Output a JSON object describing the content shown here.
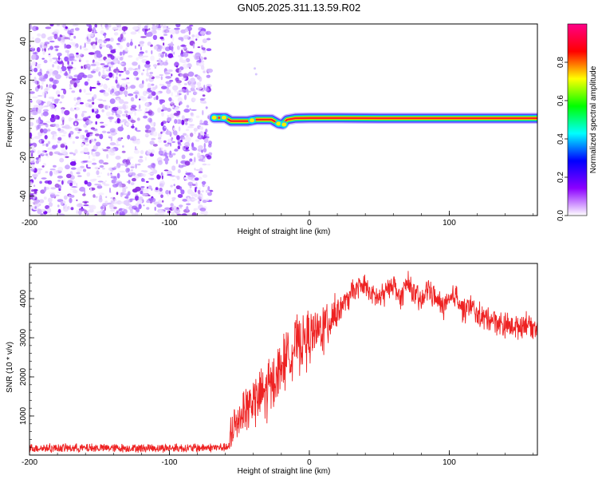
{
  "title": "GN05.2025.311.13.59.R02",
  "chart_data": [
    {
      "type": "heatmap",
      "name": "spectrogram",
      "xlabel": "Height of straight line (km)",
      "ylabel": "Frequency (Hz)",
      "xlim": [
        -200,
        163
      ],
      "ylim": [
        -50,
        49
      ],
      "xticks": [
        "-200",
        "-100",
        "0",
        "100"
      ],
      "yticks": [
        "-40",
        "-20",
        "0",
        "20",
        "40"
      ],
      "noise_region_km": [
        -200,
        -70
      ],
      "signal_region_km": [
        -70,
        163
      ],
      "signal_center_hz": [
        {
          "x": -68,
          "y": 0.5
        },
        {
          "x": -64,
          "y": 0.5
        },
        {
          "x": -60,
          "y": 0.5
        },
        {
          "x": -56,
          "y": -1.2
        },
        {
          "x": -50,
          "y": -1.2
        },
        {
          "x": -44,
          "y": -1.2
        },
        {
          "x": -38,
          "y": -0.4
        },
        {
          "x": -32,
          "y": -0.4
        },
        {
          "x": -27,
          "y": -0.4
        },
        {
          "x": -22,
          "y": -2.5
        },
        {
          "x": -19,
          "y": -2.8
        },
        {
          "x": -16,
          "y": -0.5
        },
        {
          "x": -10,
          "y": 0.3
        },
        {
          "x": 0,
          "y": 0.4
        },
        {
          "x": 20,
          "y": 0.4
        },
        {
          "x": 50,
          "y": 0.3
        },
        {
          "x": 100,
          "y": 0.3
        },
        {
          "x": 140,
          "y": 0.3
        },
        {
          "x": 163,
          "y": 0.3
        }
      ],
      "colorbar": {
        "label": "Normalized spectral amplitude",
        "ticks": [
          "0.0",
          "0.2",
          "0.4",
          "0.6",
          "0.8"
        ],
        "range": [
          0,
          1
        ],
        "colors": [
          "#ffffff",
          "#8c00ff",
          "#0000ff",
          "#00ffff",
          "#00ff00",
          "#ffff00",
          "#ff0000",
          "#ff0088"
        ]
      }
    },
    {
      "type": "line",
      "name": "snr",
      "xlabel": "Height of straight line (km)",
      "ylabel": "SNR (10 * v/v)",
      "xlim": [
        -200,
        163
      ],
      "ylim": [
        0,
        4900
      ],
      "xticks": [
        "-200",
        "-100",
        "0",
        "100"
      ],
      "yticks": [
        "1000",
        "2000",
        "3000",
        "4000"
      ],
      "color": "#ee2222",
      "series": [
        {
          "name": "SNR",
          "points": [
            {
              "x": -200,
              "y": 180
            },
            {
              "x": -160,
              "y": 180
            },
            {
              "x": -120,
              "y": 180
            },
            {
              "x": -80,
              "y": 180
            },
            {
              "x": -57,
              "y": 200
            },
            {
              "x": -55,
              "y": 600
            },
            {
              "x": -50,
              "y": 1000
            },
            {
              "x": -45,
              "y": 1200
            },
            {
              "x": -40,
              "y": 1400
            },
            {
              "x": -35,
              "y": 1500
            },
            {
              "x": -30,
              "y": 1700
            },
            {
              "x": -25,
              "y": 1900
            },
            {
              "x": -20,
              "y": 2300
            },
            {
              "x": -15,
              "y": 2600
            },
            {
              "x": -10,
              "y": 2800
            },
            {
              "x": -5,
              "y": 2900
            },
            {
              "x": 0,
              "y": 3000
            },
            {
              "x": 5,
              "y": 3100
            },
            {
              "x": 10,
              "y": 3300
            },
            {
              "x": 15,
              "y": 3500
            },
            {
              "x": 20,
              "y": 3700
            },
            {
              "x": 25,
              "y": 3900
            },
            {
              "x": 30,
              "y": 4100
            },
            {
              "x": 35,
              "y": 4300
            },
            {
              "x": 40,
              "y": 4300
            },
            {
              "x": 45,
              "y": 4100
            },
            {
              "x": 50,
              "y": 4000
            },
            {
              "x": 55,
              "y": 4200
            },
            {
              "x": 60,
              "y": 4400
            },
            {
              "x": 65,
              "y": 4000
            },
            {
              "x": 70,
              "y": 4400
            },
            {
              "x": 75,
              "y": 4100
            },
            {
              "x": 80,
              "y": 3900
            },
            {
              "x": 85,
              "y": 4300
            },
            {
              "x": 90,
              "y": 4000
            },
            {
              "x": 95,
              "y": 3800
            },
            {
              "x": 100,
              "y": 3900
            },
            {
              "x": 105,
              "y": 4100
            },
            {
              "x": 110,
              "y": 3700
            },
            {
              "x": 115,
              "y": 3800
            },
            {
              "x": 120,
              "y": 3600
            },
            {
              "x": 125,
              "y": 3500
            },
            {
              "x": 130,
              "y": 3500
            },
            {
              "x": 135,
              "y": 3400
            },
            {
              "x": 140,
              "y": 3300
            },
            {
              "x": 145,
              "y": 3300
            },
            {
              "x": 150,
              "y": 3300
            },
            {
              "x": 155,
              "y": 3400
            },
            {
              "x": 160,
              "y": 3300
            },
            {
              "x": 163,
              "y": 3250
            }
          ]
        }
      ]
    }
  ]
}
